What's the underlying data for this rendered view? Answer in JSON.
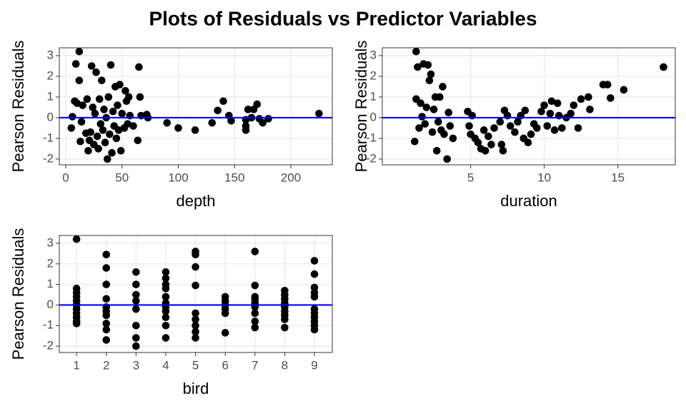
{
  "title": "Plots of Residuals vs Predictor Variables",
  "chart_data": [
    {
      "type": "scatter",
      "x_label": "depth",
      "y_label": "Pearson Residuals",
      "color": "#000000",
      "grid": true,
      "hline": {
        "value": 0,
        "color": "#0000ff"
      },
      "xlim": [
        -5.7,
        236.8
      ],
      "xticks": [
        0,
        50,
        100,
        150,
        200
      ],
      "ylim": [
        -2.28,
        3.38
      ],
      "yticks": [
        -2,
        -1,
        0,
        1,
        2,
        3
      ],
      "x": [
        5,
        6,
        8,
        9,
        10,
        12,
        12,
        13,
        14,
        15,
        18,
        19,
        20,
        21,
        22,
        23,
        24,
        25,
        26,
        27,
        28,
        29,
        30,
        31,
        32,
        33,
        34,
        35,
        36,
        37,
        38,
        39,
        40,
        41,
        42,
        43,
        44,
        45,
        46,
        47,
        48,
        49,
        50,
        52,
        53,
        54,
        55,
        56,
        57,
        60,
        64,
        65,
        66,
        67,
        72,
        73,
        90,
        100,
        115,
        130,
        135,
        140,
        145,
        147,
        160,
        160,
        160,
        162,
        165,
        167,
        170,
        172,
        175,
        180,
        225
      ],
      "y": [
        -0.5,
        0.05,
        0.8,
        2.6,
        0.7,
        3.2,
        1.8,
        -1.15,
        -0.2,
        0.6,
        -0.75,
        0.9,
        -1.6,
        -1.1,
        -0.7,
        2.5,
        0.5,
        -1.3,
        0.2,
        2.2,
        -0.9,
        -1.5,
        0.9,
        -0.3,
        1.8,
        -0.6,
        0.4,
        -1.2,
        0.0,
        -2.0,
        1.0,
        -0.8,
        2.55,
        -1.7,
        0.3,
        -0.4,
        1.5,
        -1.0,
        0.6,
        -0.6,
        1.6,
        -1.6,
        0.2,
        -0.5,
        1.3,
        0.8,
        -0.3,
        1.0,
        0.1,
        -0.4,
        -1.1,
        2.45,
        1.0,
        0.1,
        0.15,
        0.0,
        -0.25,
        -0.5,
        -0.6,
        -0.25,
        0.35,
        0.8,
        0.1,
        -0.15,
        -0.1,
        -0.6,
        -0.4,
        0.4,
        0.0,
        0.4,
        0.65,
        -0.05,
        -0.25,
        -0.05,
        0.2
      ]
    },
    {
      "type": "scatter",
      "x_label": "duration",
      "y_label": "Pearson Residuals",
      "color": "#000000",
      "grid": true,
      "hline": {
        "value": 0,
        "color": "#0000ff"
      },
      "xlim": [
        -1.0,
        18.9
      ],
      "xticks": [
        5,
        10,
        15
      ],
      "ylim": [
        -2.28,
        3.38
      ],
      "yticks": [
        -2,
        -1,
        0,
        1,
        2,
        3
      ],
      "x": [
        1.2,
        1.3,
        1.3,
        1.4,
        1.5,
        1.6,
        1.7,
        1.8,
        1.9,
        2.0,
        2.1,
        2.2,
        2.3,
        2.4,
        2.5,
        2.6,
        2.7,
        2.8,
        2.9,
        3.0,
        3.1,
        3.2,
        3.4,
        3.5,
        3.6,
        3.8,
        4.8,
        4.9,
        5.0,
        5.1,
        5.3,
        5.5,
        5.7,
        5.9,
        6.0,
        6.2,
        6.4,
        6.6,
        7.0,
        7.1,
        7.2,
        7.3,
        7.5,
        7.7,
        8.0,
        8.2,
        8.4,
        8.6,
        8.7,
        8.9,
        9.1,
        9.3,
        9.5,
        9.8,
        10.0,
        10.2,
        10.4,
        10.5,
        10.7,
        10.9,
        11.0,
        11.2,
        11.5,
        11.8,
        12.0,
        12.3,
        12.5,
        13.0,
        13.1,
        14.0,
        14.3,
        14.5,
        15.4,
        18.1
      ],
      "y": [
        -1.15,
        3.2,
        0.9,
        2.45,
        -0.5,
        0.7,
        0.05,
        2.6,
        -0.3,
        0.5,
        2.55,
        1.8,
        2.1,
        -0.7,
        0.4,
        1.0,
        -1.6,
        -0.2,
        1.0,
        -0.6,
        1.5,
        -0.8,
        -2.0,
        0.25,
        -0.4,
        -1.0,
        0.3,
        -0.4,
        -0.8,
        0.1,
        -1.0,
        -1.2,
        -1.5,
        -0.6,
        -1.6,
        -0.9,
        -1.3,
        -0.5,
        -0.2,
        -1.3,
        -1.6,
        0.35,
        0.1,
        -0.4,
        -0.7,
        -0.2,
        0.1,
        -1.0,
        0.35,
        -1.2,
        -0.8,
        -0.3,
        -0.5,
        0.3,
        0.6,
        -0.4,
        0.2,
        0.8,
        -0.6,
        0.7,
        0.1,
        -0.5,
        0.0,
        0.2,
        0.6,
        -0.5,
        0.9,
        1.0,
        0.4,
        1.6,
        1.6,
        0.95,
        1.35,
        2.45
      ]
    },
    {
      "type": "scatter",
      "x_label": "bird",
      "y_label": "Pearson Residuals",
      "color": "#000000",
      "grid": true,
      "hline": {
        "value": 0,
        "color": "#0000ff"
      },
      "xlim": [
        0.42,
        9.6
      ],
      "xticks": [
        1,
        2,
        3,
        4,
        5,
        6,
        7,
        8,
        9
      ],
      "ylim": [
        -2.31,
        3.38
      ],
      "yticks": [
        -2,
        -1,
        0,
        1,
        2,
        3
      ],
      "x": [
        1,
        1,
        1,
        1,
        1,
        1,
        1,
        1,
        1,
        1,
        1,
        2,
        2,
        2,
        2,
        2,
        2,
        2,
        2,
        2,
        2,
        3,
        3,
        3,
        3,
        3,
        3,
        3,
        3,
        4,
        4,
        4,
        4,
        4,
        4,
        4,
        4,
        4,
        4,
        4,
        5,
        5,
        5,
        5,
        5,
        5,
        5,
        5,
        5,
        6,
        6,
        6,
        6,
        6,
        6,
        7,
        7,
        7,
        7,
        7,
        7,
        7,
        7,
        7,
        8,
        8,
        8,
        8,
        8,
        8,
        8,
        8,
        8,
        9,
        9,
        9,
        9,
        9,
        9,
        9,
        9,
        9,
        9,
        9
      ],
      "y": [
        3.2,
        0.8,
        0.6,
        0.4,
        0.2,
        0.0,
        -0.2,
        -0.4,
        -0.6,
        -0.8,
        -0.9,
        2.45,
        1.8,
        1.0,
        0.3,
        -0.1,
        -0.3,
        -0.5,
        -0.9,
        -1.2,
        -1.7,
        1.6,
        1.0,
        0.5,
        0.2,
        -0.2,
        -1.0,
        -1.6,
        -2.0,
        1.6,
        1.3,
        1.0,
        0.8,
        0.4,
        0.1,
        -0.1,
        -0.3,
        -0.6,
        -1.0,
        -1.6,
        2.6,
        2.45,
        1.85,
        0.95,
        -0.4,
        -0.7,
        -1.0,
        -1.3,
        -1.6,
        0.4,
        0.2,
        0.0,
        -0.2,
        -0.4,
        -1.35,
        2.6,
        0.95,
        0.4,
        0.3,
        0.1,
        -0.1,
        -0.4,
        -0.8,
        -1.1,
        0.7,
        0.5,
        0.3,
        0.1,
        -0.1,
        -0.3,
        -0.5,
        -0.7,
        -1.1,
        2.15,
        1.5,
        0.85,
        0.6,
        0.4,
        -0.2,
        -0.4,
        -0.6,
        -0.8,
        -1.0,
        -1.2
      ]
    }
  ]
}
